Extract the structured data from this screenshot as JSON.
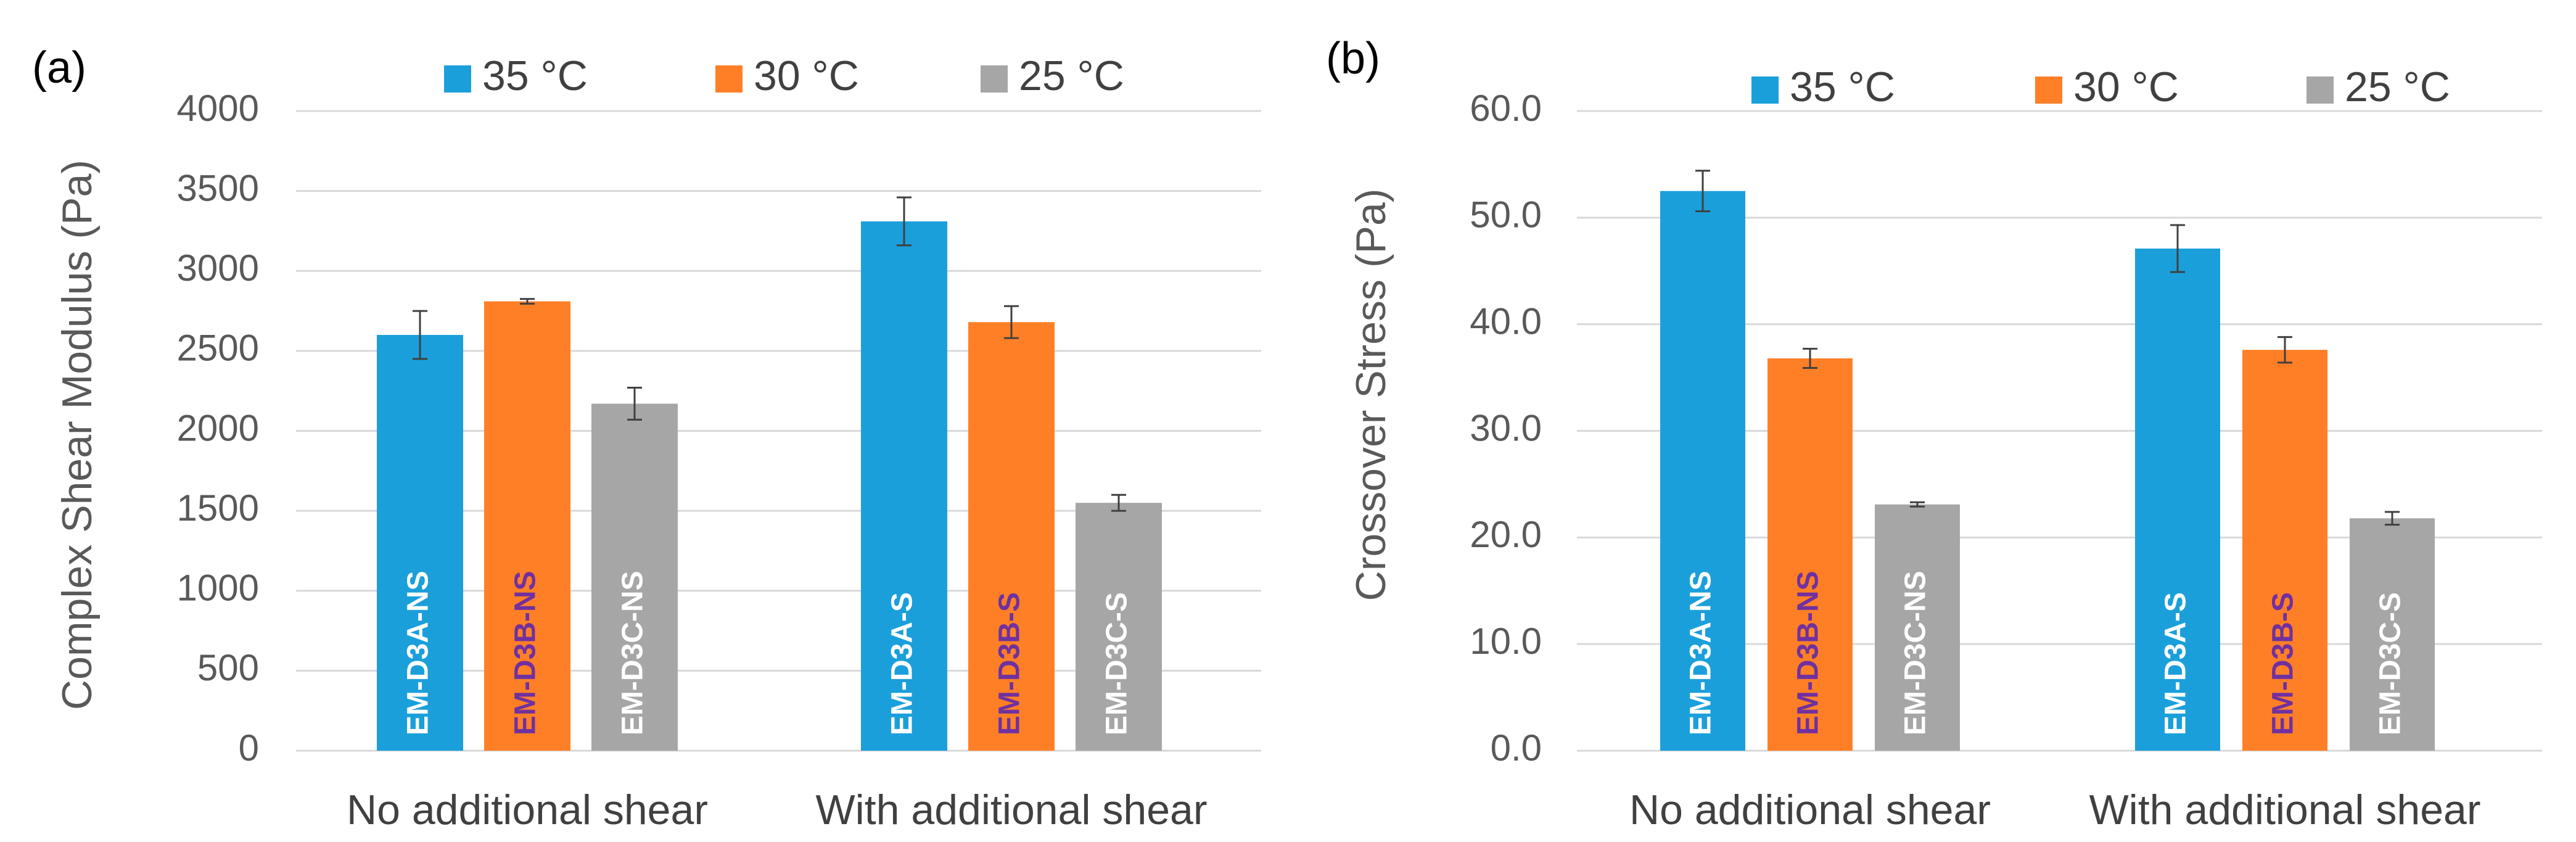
{
  "colors": {
    "s35": "#1b9fdb",
    "s30": "#ff7f27",
    "s25": "#a6a6a6",
    "grid": "#d9d9d9",
    "err": "#404040",
    "label_white": "#ffffff",
    "label_purple": "#7030a0"
  },
  "chart_data": [
    {
      "type": "bar",
      "panel_label": "(a)",
      "title": "",
      "xlabel": "",
      "ylabel": "Complex Shear Modulus (Pa)",
      "ylim": [
        0,
        4000
      ],
      "yticks": [
        "0",
        "500",
        "1000",
        "1500",
        "2000",
        "2500",
        "3000",
        "3500",
        "4000"
      ],
      "grid": true,
      "legend_position": "top",
      "categories": [
        "No additional shear",
        "With additional shear"
      ],
      "series": [
        {
          "name": "35 °C",
          "color": "s35",
          "values": [
            2600,
            3310
          ],
          "errors": [
            150,
            150
          ],
          "bar_labels": [
            "EM-D3A-NS",
            "EM-D3A-S"
          ],
          "label_color": "label_white"
        },
        {
          "name": "30 °C",
          "color": "s30",
          "values": [
            2810,
            2680
          ],
          "errors": [
            15,
            100
          ],
          "bar_labels": [
            "EM-D3B-NS",
            "EM-D3B-S"
          ],
          "label_color": "label_purple"
        },
        {
          "name": "25 °C",
          "color": "s25",
          "values": [
            2170,
            1550
          ],
          "errors": [
            100,
            50
          ],
          "bar_labels": [
            "EM-D3C-NS",
            "EM-D3C-S"
          ],
          "label_color": "label_white"
        }
      ]
    },
    {
      "type": "bar",
      "panel_label": "(b)",
      "title": "",
      "xlabel": "",
      "ylabel": "Crossover Stress (Pa)",
      "ylim": [
        0,
        60
      ],
      "yticks": [
        "0.0",
        "10.0",
        "20.0",
        "30.0",
        "40.0",
        "50.0",
        "60.0"
      ],
      "grid": true,
      "legend_position": "top",
      "categories": [
        "No additional shear",
        "With additional shear"
      ],
      "series": [
        {
          "name": "35 °C",
          "color": "s35",
          "values": [
            52.5,
            47.1
          ],
          "errors": [
            1.9,
            2.2
          ],
          "bar_labels": [
            "EM-D3A-NS",
            "EM-D3A-S"
          ],
          "label_color": "label_white"
        },
        {
          "name": "30 °C",
          "color": "s30",
          "values": [
            36.8,
            37.6
          ],
          "errors": [
            0.9,
            1.2
          ],
          "bar_labels": [
            "EM-D3B-NS",
            "EM-D3B-S"
          ],
          "label_color": "label_purple"
        },
        {
          "name": "25 °C",
          "color": "s25",
          "values": [
            23.1,
            21.8
          ],
          "errors": [
            0.2,
            0.6
          ],
          "bar_labels": [
            "EM-D3C-NS",
            "EM-D3C-S"
          ],
          "label_color": "label_white"
        }
      ]
    }
  ]
}
